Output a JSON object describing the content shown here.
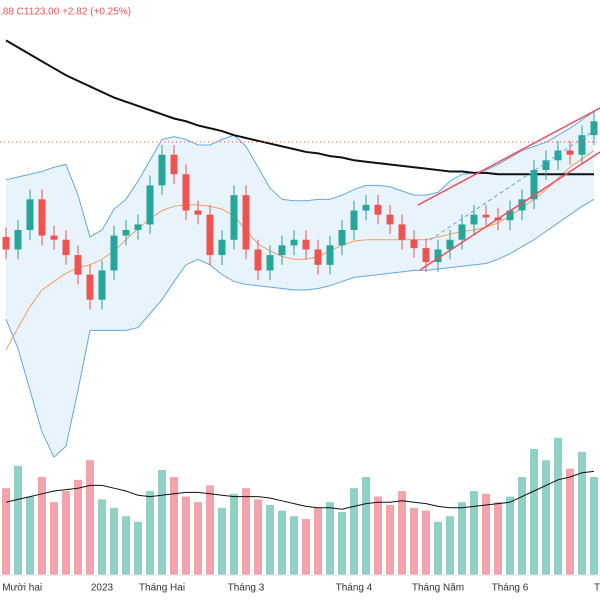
{
  "chart_data": {
    "type": "candlestick",
    "header": ".88 C1123.00 +2.82 (+0.25%)",
    "categories": [
      null,
      "g Mười hai",
      null,
      null,
      null,
      null,
      null,
      null,
      "2023",
      null,
      null,
      null,
      null,
      "Tháng Hai",
      null,
      null,
      null,
      null,
      null,
      null,
      "Tháng 3",
      null,
      null,
      null,
      null,
      null,
      null,
      null,
      null,
      "Tháng 4",
      null,
      null,
      null,
      null,
      null,
      null,
      "Tháng Năm",
      null,
      null,
      null,
      null,
      null,
      "Tháng 6",
      null,
      null,
      null,
      null,
      null,
      null,
      "T"
    ],
    "open": [
      1040,
      1031,
      1045,
      1067,
      1041,
      1038,
      1027,
      1013,
      995,
      1016,
      1041,
      1045,
      1049,
      1077,
      1099,
      1085,
      1059,
      1056,
      1027,
      1038,
      1070,
      1031,
      1016,
      1027,
      1034,
      1038,
      1031,
      1020,
      1034,
      1045,
      1059,
      1063,
      1056,
      1049,
      1038,
      1032,
      1022,
      1031,
      1038,
      1049,
      1056,
      1054,
      1052,
      1059,
      1067,
      1088,
      1095,
      1102,
      1099,
      1113
    ],
    "high": [
      1047,
      1052,
      1074,
      1074,
      1048,
      1045,
      1034,
      1020,
      1023,
      1048,
      1052,
      1056,
      1084,
      1106,
      1106,
      1092,
      1066,
      1063,
      1045,
      1077,
      1077,
      1038,
      1034,
      1041,
      1045,
      1045,
      1038,
      1041,
      1052,
      1066,
      1070,
      1070,
      1063,
      1056,
      1045,
      1039,
      1038,
      1045,
      1056,
      1063,
      1063,
      1061,
      1066,
      1074,
      1095,
      1102,
      1109,
      1109,
      1120,
      1130
    ],
    "low": [
      1024,
      1024,
      1038,
      1034,
      1031,
      1020,
      1006,
      988,
      988,
      1009,
      1034,
      1038,
      1042,
      1070,
      1078,
      1052,
      1049,
      1020,
      1020,
      1031,
      1024,
      1009,
      1009,
      1020,
      1027,
      1024,
      1013,
      1013,
      1027,
      1038,
      1052,
      1049,
      1042,
      1031,
      1025,
      1015,
      1015,
      1024,
      1031,
      1042,
      1047,
      1045,
      1045,
      1052,
      1060,
      1081,
      1088,
      1092,
      1092,
      1106
    ],
    "close": [
      1031,
      1045,
      1067,
      1041,
      1038,
      1027,
      1013,
      995,
      1016,
      1041,
      1045,
      1049,
      1077,
      1099,
      1085,
      1059,
      1056,
      1027,
      1038,
      1070,
      1031,
      1016,
      1027,
      1034,
      1038,
      1031,
      1020,
      1034,
      1045,
      1059,
      1063,
      1056,
      1049,
      1038,
      1032,
      1022,
      1031,
      1038,
      1049,
      1056,
      1054,
      1052,
      1059,
      1067,
      1088,
      1095,
      1102,
      1099,
      1113,
      1123
    ],
    "volume": [
      620,
      780,
      560,
      700,
      520,
      600,
      680,
      820,
      540,
      480,
      420,
      380,
      600,
      750,
      700,
      560,
      520,
      640,
      480,
      580,
      620,
      540,
      500,
      460,
      420,
      400,
      480,
      520,
      450,
      620,
      700,
      560,
      500,
      600,
      480,
      460,
      380,
      420,
      520,
      600,
      580,
      520,
      560,
      700,
      900,
      820,
      980,
      760,
      880,
      700
    ],
    "volume_ma": {
      "color": "#111111",
      "values": [
        520,
        540,
        560,
        580,
        600,
        610,
        620,
        640,
        640,
        620,
        600,
        570,
        560,
        570,
        580,
        590,
        590,
        580,
        570,
        560,
        560,
        560,
        550,
        530,
        510,
        490,
        480,
        480,
        470,
        490,
        510,
        520,
        520,
        530,
        520,
        510,
        490,
        480,
        480,
        490,
        500,
        510,
        520,
        560,
        600,
        640,
        680,
        700,
        730,
        740
      ]
    },
    "up_color": "#26a69a",
    "down_color": "#ef5350",
    "volume_up_color": "#8fd1c6",
    "volume_down_color": "#f5a3aa",
    "bands": {
      "color": "#64a8e0",
      "fill": "#e8f3fc",
      "upper": [
        1081,
        1083,
        1085,
        1087,
        1090,
        1092,
        1070,
        1040,
        1045,
        1060,
        1067,
        1080,
        1095,
        1110,
        1112,
        1110,
        1106,
        1106,
        1110,
        1113,
        1105,
        1090,
        1075,
        1067,
        1066,
        1066,
        1067,
        1067,
        1070,
        1074,
        1077,
        1077,
        1076,
        1073,
        1070,
        1070,
        1072,
        1080,
        1085,
        1086,
        1088,
        1092,
        1097,
        1102,
        1105,
        1108,
        1113,
        1118,
        1124,
        1130
      ],
      "lower": [
        981,
        960,
        930,
        900,
        882,
        890,
        930,
        973,
        973,
        973,
        973,
        975,
        985,
        995,
        1008,
        1020,
        1024,
        1020,
        1013,
        1008,
        1006,
        1005,
        1004,
        1003,
        1002,
        1002,
        1003,
        1005,
        1008,
        1011,
        1012,
        1013,
        1014,
        1015,
        1016,
        1016,
        1017,
        1018,
        1019,
        1020,
        1021,
        1024,
        1028,
        1033,
        1038,
        1044,
        1050,
        1056,
        1062,
        1067
      ]
    },
    "lines": [
      {
        "color": "#f0a060",
        "values": [
          959,
          975,
          990,
          1002,
          1008,
          1014,
          1018,
          1020,
          1024,
          1030,
          1038,
          1046,
          1053,
          1059,
          1062,
          1063,
          1063,
          1062,
          1060,
          1055,
          1045,
          1035,
          1030,
          1026,
          1024,
          1024,
          1026,
          1030,
          1034,
          1037,
          1038,
          1038,
          1038,
          1038,
          1038,
          1038,
          1040,
          1042,
          1044,
          1045,
          1047,
          1050,
          1055,
          1061,
          1067,
          1074,
          1082,
          1090,
          1096,
          1102
        ]
      },
      {
        "color": "#111111",
        "values": [
          1181,
          1176,
          1171,
          1166,
          1161,
          1156,
          1152,
          1148,
          1144,
          1140,
          1137,
          1134,
          1131,
          1128,
          1125,
          1123,
          1120,
          1118,
          1116,
          1113,
          1111,
          1109,
          1107,
          1105,
          1103,
          1101,
          1100,
          1098,
          1097,
          1095,
          1094,
          1093,
          1092,
          1091,
          1090,
          1089,
          1088,
          1087,
          1087,
          1086,
          1086,
          1085,
          1085,
          1085,
          1085,
          1085,
          1085,
          1085,
          1085,
          1085
        ]
      }
    ],
    "ylim": [
      880,
      1210
    ],
    "vlim": [
      0,
      1000
    ]
  }
}
